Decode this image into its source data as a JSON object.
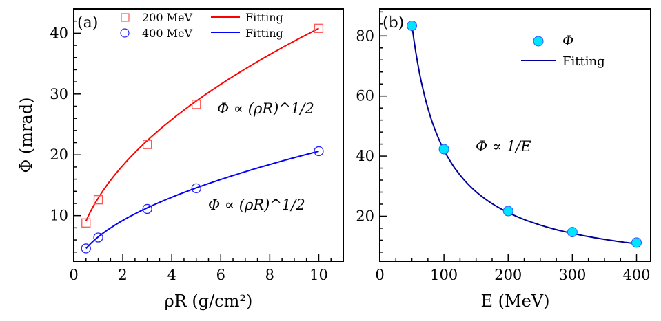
{
  "chart_data": [
    {
      "type": "scatter",
      "panel_label": "(a)",
      "xlabel": "ρR (g/cm²)",
      "ylabel": "Φ (mrad)",
      "xlim": [
        0,
        11
      ],
      "ylim": [
        2.5,
        44
      ],
      "xticks": [
        0,
        2,
        4,
        6,
        8,
        10
      ],
      "yticks": [
        10,
        20,
        30,
        40
      ],
      "grid": false,
      "legend_placement": "top",
      "series": [
        {
          "name": "200 MeV",
          "marker": "square-open",
          "color": "#ff5555",
          "x": [
            0.5,
            1,
            3,
            5,
            10
          ],
          "y": [
            8.8,
            12.6,
            21.7,
            28.3,
            40.8
          ]
        },
        {
          "name": "400 MeV",
          "marker": "circle-open",
          "color": "#2222ff",
          "x": [
            0.5,
            1,
            3,
            5,
            10
          ],
          "y": [
            4.6,
            6.4,
            11.1,
            14.5,
            20.6
          ]
        }
      ],
      "fits": [
        {
          "name": "Fitting",
          "color": "#ff0000",
          "coef": 12.9,
          "form": "sqrt"
        },
        {
          "name": "Fitting",
          "color": "#0000ff",
          "coef": 6.51,
          "form": "sqrt"
        }
      ],
      "annotations": [
        "Φ ∝ (ρR)^1/2",
        "Φ ∝ (ρR)^1/2"
      ]
    },
    {
      "type": "scatter",
      "panel_label": "(b)",
      "xlabel": "E (MeV)",
      "ylabel": "",
      "xlim": [
        0,
        422
      ],
      "ylim": [
        5,
        89
      ],
      "xticks": [
        0,
        100,
        200,
        300,
        400
      ],
      "yticks": [
        20,
        40,
        60,
        80
      ],
      "grid": false,
      "legend_placement": "top-right",
      "series": [
        {
          "name": "Φ",
          "marker": "circle-filled",
          "color": "#00e5ff",
          "x": [
            50,
            100,
            200,
            300,
            400
          ],
          "y": [
            83.4,
            42.3,
            21.7,
            14.7,
            11.2
          ]
        }
      ],
      "fits": [
        {
          "name": "Fitting",
          "color": "#000099",
          "a": 4160,
          "b": 0.4,
          "form": "inverse",
          "xrange": [
            50,
            400
          ]
        }
      ],
      "annotations": [
        "Φ ∝ 1/E"
      ]
    }
  ]
}
